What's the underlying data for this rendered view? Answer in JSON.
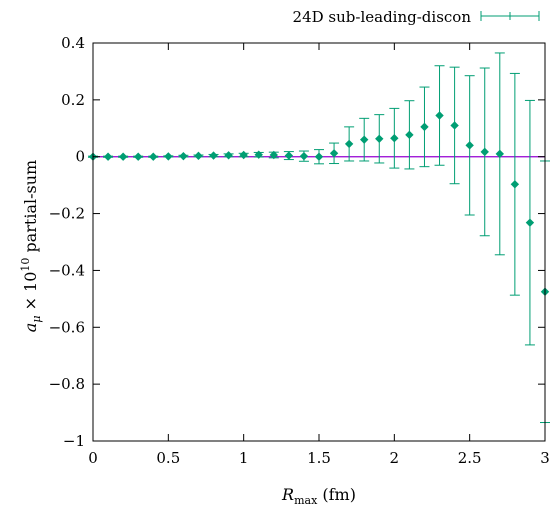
{
  "chart_data": {
    "type": "scatter",
    "xlabel": {
      "main": "R",
      "sub": "max",
      "unit": " (fm)"
    },
    "ylabel": {
      "pre": "a",
      "sub": "μ",
      "mid": " × 10",
      "sup": "10",
      "post": " partial-sum"
    },
    "xlim": [
      0,
      3
    ],
    "ylim": [
      -1,
      0.4
    ],
    "xticks": [
      0,
      0.5,
      1,
      1.5,
      2,
      2.5,
      3
    ],
    "xtick_labels": [
      "0",
      "0.5",
      "1",
      "1.5",
      "2",
      "2.5",
      "3"
    ],
    "yticks": [
      -1,
      -0.8,
      -0.6,
      -0.4,
      -0.2,
      0,
      0.2,
      0.4
    ],
    "ytick_labels": [
      "−1",
      "−0.8",
      "−0.6",
      "−0.4",
      "−0.2",
      "0",
      "0.2",
      "0.4"
    ],
    "grid": false,
    "legend_position": "top-right",
    "reference_line": {
      "y": 0,
      "color": "#9400d3"
    },
    "series": [
      {
        "name": "24D sub-leading-discon",
        "color": "#009e73",
        "marker": "diamond",
        "points": [
          {
            "x": 0.0,
            "y": 0.0,
            "err": 0.002
          },
          {
            "x": 0.1,
            "y": 0.0,
            "err": 0.002
          },
          {
            "x": 0.2,
            "y": 0.0,
            "err": 0.002
          },
          {
            "x": 0.3,
            "y": 0.0,
            "err": 0.002
          },
          {
            "x": 0.4,
            "y": 0.0,
            "err": 0.002
          },
          {
            "x": 0.5,
            "y": 0.001,
            "err": 0.002
          },
          {
            "x": 0.6,
            "y": 0.002,
            "err": 0.003
          },
          {
            "x": 0.7,
            "y": 0.003,
            "err": 0.003
          },
          {
            "x": 0.8,
            "y": 0.004,
            "err": 0.004
          },
          {
            "x": 0.9,
            "y": 0.005,
            "err": 0.005
          },
          {
            "x": 1.0,
            "y": 0.006,
            "err": 0.006
          },
          {
            "x": 1.1,
            "y": 0.007,
            "err": 0.008
          },
          {
            "x": 1.2,
            "y": 0.006,
            "err": 0.01
          },
          {
            "x": 1.3,
            "y": 0.004,
            "err": 0.014
          },
          {
            "x": 1.4,
            "y": 0.002,
            "err": 0.018
          },
          {
            "x": 1.5,
            "y": 0.0,
            "err": 0.025
          },
          {
            "x": 1.6,
            "y": 0.012,
            "err": 0.036
          },
          {
            "x": 1.7,
            "y": 0.045,
            "err": 0.06
          },
          {
            "x": 1.8,
            "y": 0.06,
            "err": 0.075
          },
          {
            "x": 1.9,
            "y": 0.063,
            "err": 0.085
          },
          {
            "x": 2.0,
            "y": 0.065,
            "err": 0.105
          },
          {
            "x": 2.1,
            "y": 0.077,
            "err": 0.12
          },
          {
            "x": 2.2,
            "y": 0.105,
            "err": 0.14
          },
          {
            "x": 2.3,
            "y": 0.145,
            "err": 0.175
          },
          {
            "x": 2.4,
            "y": 0.11,
            "err": 0.205
          },
          {
            "x": 2.5,
            "y": 0.04,
            "err": 0.245
          },
          {
            "x": 2.6,
            "y": 0.017,
            "err": 0.295
          },
          {
            "x": 2.7,
            "y": 0.01,
            "err": 0.355
          },
          {
            "x": 2.8,
            "y": -0.097,
            "err": 0.39
          },
          {
            "x": 2.9,
            "y": -0.232,
            "err": 0.43
          },
          {
            "x": 3.0,
            "y": -0.475,
            "err": 0.46
          }
        ]
      }
    ]
  }
}
